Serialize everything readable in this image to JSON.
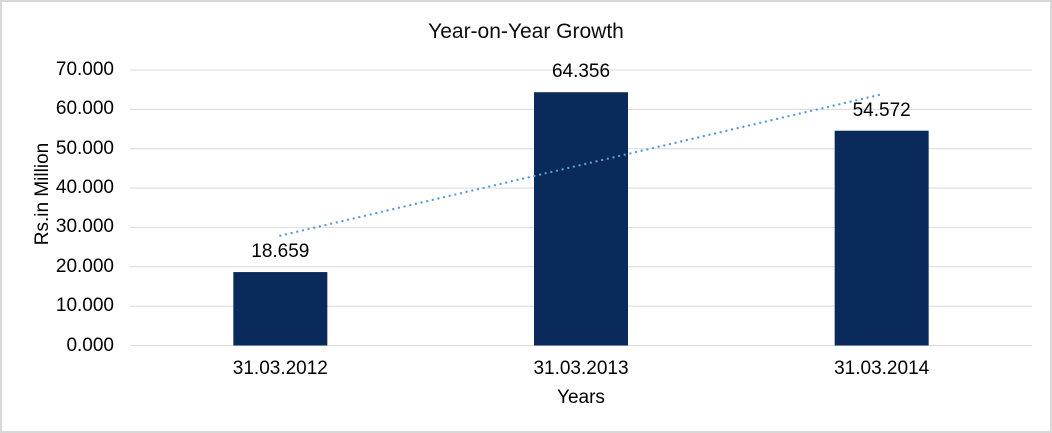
{
  "chart_data": {
    "type": "bar",
    "title": "Year-on-Year Growth",
    "xlabel": "Years",
    "ylabel": "Rs.in Million",
    "categories": [
      "31.03.2012",
      "31.03.2013",
      "31.03.2014"
    ],
    "values": [
      18659,
      64356,
      54572
    ],
    "value_labels": [
      "18.659",
      "64.356",
      "54.572"
    ],
    "y_ticks": [
      0,
      10000,
      20000,
      30000,
      40000,
      50000,
      60000,
      70000
    ],
    "y_tick_labels": [
      "0.000",
      "10.000",
      "20.000",
      "30.000",
      "40.000",
      "50.000",
      "60.000",
      "70.000"
    ],
    "ylim": [
      0,
      70000
    ],
    "grid": true,
    "legend": false,
    "trendline": {
      "type": "linear",
      "style": "dotted",
      "spans": "first-to-last-category"
    },
    "colors": {
      "bar": "#0a2a5c",
      "trendline": "#5b9bd5",
      "gridline": "#d9d9d9",
      "text": "#000000",
      "chart_border": "#d8d8d8",
      "background": "#ffffff"
    }
  }
}
